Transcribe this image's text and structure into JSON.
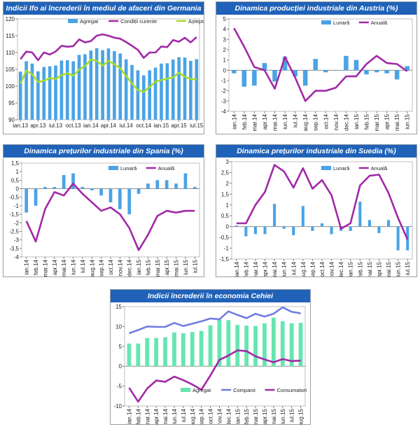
{
  "chart_data": [
    {
      "id": "germany",
      "type": "bar+line",
      "title": "Indicii Ifo ai încrederii în mediul de afaceri din Germania",
      "ylim": [
        90,
        120
      ],
      "yticks": [
        90,
        95,
        100,
        105,
        110,
        115,
        120
      ],
      "categories": [
        "ian.13",
        "feb.13",
        "mar.13",
        "apr.13",
        "mai.13",
        "iun.13",
        "iul.13",
        "aug.13",
        "sep.13",
        "oct.13",
        "nov.13",
        "dec.13",
        "ian.14",
        "feb.14",
        "mar.14",
        "apr.14",
        "mai.14",
        "iun.14",
        "iul.14",
        "aug.14",
        "sep.14",
        "oct.14",
        "nov.14",
        "dec.14",
        "ian.15",
        "feb.15",
        "mar.15",
        "apr.15",
        "mai.15",
        "iun.15",
        "iul.15"
      ],
      "tick_labels": [
        "ian.13",
        "apr.13",
        "iul.13",
        "oct.13",
        "ian.14",
        "apr.14",
        "iul.14",
        "oct.14",
        "ian.15",
        "apr.15",
        "iul.15"
      ],
      "legend": [
        "Agregat",
        "Condiții curente",
        "Așteptări"
      ],
      "series": [
        {
          "name": "Agregat",
          "type": "bar",
          "color": "#4aa3e6",
          "values": [
            104.3,
            107.4,
            106.7,
            104.4,
            105.7,
            105.9,
            106.1,
            107.6,
            107.7,
            107.4,
            109.3,
            109.5,
            110.6,
            111.3,
            110.7,
            111.2,
            110.4,
            109.7,
            108.0,
            106.3,
            104.7,
            103.2,
            104.7,
            105.5,
            106.7,
            106.8,
            107.9,
            108.6,
            108.5,
            107.5,
            108.0
          ]
        },
        {
          "name": "Condiții curente",
          "type": "line",
          "color": "#a12aa7",
          "values": [
            108.0,
            110.3,
            110.0,
            107.7,
            110.0,
            109.4,
            110.3,
            112.0,
            111.7,
            111.9,
            113.9,
            113.0,
            113.4,
            115.0,
            115.4,
            115.0,
            114.4,
            114.1,
            113.1,
            112.0,
            110.8,
            108.4,
            110.0,
            110.0,
            111.8,
            111.6,
            113.7,
            113.2,
            114.4,
            113.0,
            114.6
          ]
        },
        {
          "name": "Așteptări",
          "type": "line",
          "color": "#a8da2c",
          "values": [
            100.7,
            104.6,
            103.5,
            101.2,
            101.6,
            102.4,
            102.1,
            103.3,
            103.8,
            103.1,
            104.9,
            106.0,
            107.9,
            107.5,
            106.1,
            107.5,
            106.5,
            105.3,
            103.0,
            100.8,
            98.8,
            98.3,
            99.7,
            101.3,
            101.8,
            102.2,
            102.6,
            104.0,
            102.8,
            102.1,
            102.0
          ]
        }
      ]
    },
    {
      "id": "austria",
      "type": "bar+line",
      "title": "Dinamica producției industriale din Austria (%)",
      "ylim": [
        -4,
        5
      ],
      "yticks": [
        -4,
        -3,
        -2,
        -1,
        0,
        1,
        2,
        3,
        4,
        5
      ],
      "categories": [
        "ian.14",
        "feb.14",
        "mar.14",
        "apr.14",
        "mai.14",
        "iun.14",
        "iul.14",
        "aug.14",
        "sep.14",
        "oct.14",
        "nov.14",
        "dec.14",
        "ian.15",
        "feb.15",
        "mar.15",
        "apr.15",
        "mai.15",
        "iun.15"
      ],
      "tick_labels": [
        "ian.14",
        "feb.14",
        "mar.14",
        "apr.14",
        "mai.14",
        "iun.14",
        "iul.14",
        "aug.14",
        "sep.14",
        "oct.14",
        "nov.14",
        "dec.14",
        "ian.15",
        "feb.15",
        "mar.15",
        "apr.15",
        "mai.15",
        "iun.15"
      ],
      "legend": [
        "Lunară",
        "Anuală"
      ],
      "series": [
        {
          "name": "Lunară",
          "type": "bar",
          "color": "#4aa3e6",
          "values": [
            -0.3,
            -1.6,
            -1.5,
            0.7,
            -1.1,
            1.3,
            -0.6,
            -1.5,
            1.1,
            -0.2,
            0.0,
            1.4,
            1.0,
            -0.4,
            -0.2,
            -0.3,
            -0.9,
            0.4
          ]
        },
        {
          "name": "Anuală",
          "type": "line",
          "color": "#a12aa7",
          "values": [
            4.1,
            2.3,
            0.3,
            0.0,
            -1.8,
            1.3,
            -0.7,
            -3.0,
            -2.0,
            -2.0,
            -1.7,
            -0.6,
            -0.6,
            0.6,
            1.4,
            0.7,
            0.6,
            -0.1
          ]
        }
      ]
    },
    {
      "id": "spain",
      "type": "bar+line",
      "title": "Dinamica prețurilor industriale din Spania (%)",
      "ylim": [
        -4,
        1.5
      ],
      "yticks": [
        -4,
        -3.5,
        -3,
        -2.5,
        -2,
        -1.5,
        -1,
        -0.5,
        0,
        0.5,
        1,
        1.5
      ],
      "categories": [
        "ian.14",
        "feb.14",
        "mar.14",
        "apr.14",
        "mai.14",
        "iun.14",
        "iul.14",
        "aug.14",
        "sep.14",
        "oct.14",
        "nov.14",
        "dec.14",
        "ian.15",
        "feb.15",
        "mar.15",
        "apr.15",
        "mai.15",
        "iun.15",
        "iul.15"
      ],
      "tick_labels": [
        "ian.14",
        "feb.14",
        "mar.14",
        "apr.14",
        "mai.14",
        "iun.14",
        "iul.14",
        "aug.14",
        "sep.14",
        "oct.14",
        "nov.14",
        "dec.14",
        "ian.15",
        "feb.15",
        "mar.15",
        "apr.15",
        "mai.15",
        "iun.15",
        "iul.15"
      ],
      "legend": [
        "Lunară",
        "Anuală"
      ],
      "series": [
        {
          "name": "Lunară",
          "type": "bar",
          "color": "#4aa3e6",
          "values": [
            -1.4,
            -1.0,
            0.1,
            0.1,
            0.8,
            0.9,
            0.1,
            -0.1,
            -0.4,
            -0.8,
            -1.2,
            -1.5,
            -0.3,
            0.3,
            0.5,
            0.5,
            0.3,
            0.9,
            0.1
          ]
        },
        {
          "name": "Anuală",
          "type": "line",
          "color": "#a12aa7",
          "values": [
            -1.9,
            -3.1,
            -1.2,
            -0.2,
            -0.4,
            0.3,
            -0.3,
            -0.8,
            -1.3,
            -1.1,
            -1.5,
            -2.3,
            -3.6,
            -2.7,
            -1.6,
            -1.3,
            -1.4,
            -1.3,
            -1.3
          ]
        }
      ]
    },
    {
      "id": "sweden",
      "type": "bar+line",
      "title": "Dinamica prețurilor industriale din Suedia (%)",
      "ylim": [
        -1.5,
        3
      ],
      "yticks": [
        -1.5,
        -1,
        -0.5,
        0,
        0.5,
        1,
        1.5,
        2,
        2.5,
        3
      ],
      "categories": [
        "ian.14",
        "feb.14",
        "mar.14",
        "apr.14",
        "mai.14",
        "iun.14",
        "iul.14",
        "aug.14",
        "sep.14",
        "oct.14",
        "nov.14",
        "dec.14",
        "ian.15",
        "feb.15",
        "mar.15",
        "apr.15",
        "mai.15",
        "iun.15",
        "iul.15"
      ],
      "tick_labels": [
        "ian.14",
        "feb.14",
        "mar.14",
        "apr.14",
        "mai.14",
        "iun.14",
        "iul.14",
        "aug.14",
        "sep.14",
        "oct.14",
        "nov.14",
        "dec.14",
        "ian.15",
        "feb.15",
        "mar.15",
        "apr.15",
        "mai.15",
        "iun.15",
        "iul.15"
      ],
      "legend": [
        "Lunară",
        "Anuală"
      ],
      "series": [
        {
          "name": "Lunară",
          "type": "bar",
          "color": "#4aa3e6",
          "values": [
            0.05,
            -0.45,
            -0.35,
            -0.35,
            1.05,
            -0.1,
            -0.4,
            0.95,
            -0.2,
            0.15,
            -0.35,
            -0.2,
            -0.2,
            1.15,
            0.3,
            -0.3,
            0.3,
            -1.1,
            -1.1
          ]
        },
        {
          "name": "Anuală",
          "type": "line",
          "color": "#a12aa7",
          "values": [
            0.15,
            0.15,
            1.0,
            1.6,
            2.85,
            2.55,
            1.8,
            2.7,
            1.75,
            2.15,
            1.45,
            -0.1,
            0.15,
            1.9,
            2.35,
            2.4,
            1.55,
            0.4,
            -0.6
          ]
        }
      ]
    },
    {
      "id": "czech",
      "type": "bar+line",
      "title": "Indicii încrederii în economia Cehiei",
      "ylim": [
        -10,
        15
      ],
      "yticks": [
        -10,
        -5,
        0,
        5,
        10,
        15
      ],
      "categories": [
        "ian.14",
        "feb.14",
        "mar.14",
        "apr.14",
        "mai.14",
        "iun.14",
        "iul.14",
        "aug.14",
        "sep.14",
        "oct.14",
        "nov.14",
        "dec.14",
        "ian.15",
        "feb.15",
        "mar.15",
        "apr.15",
        "mai.15",
        "iun.15",
        "iul.15",
        "aug.15"
      ],
      "tick_labels": [
        "ian.14",
        "feb.14",
        "mar.14",
        "apr.14",
        "mai.14",
        "iun.14",
        "iul.14",
        "aug.14",
        "sep.14",
        "oct.14",
        "nov.14",
        "dec.14",
        "ian.15",
        "feb.15",
        "mar.15",
        "apr.15",
        "mai.15",
        "iun.15",
        "iul.15",
        "aug.15"
      ],
      "legend": [
        "Agregat",
        "Companii",
        "Consumatori"
      ],
      "series": [
        {
          "name": "Agregat",
          "type": "bar",
          "color": "#66e6b0",
          "values": [
            5.7,
            5.7,
            7.1,
            7.1,
            7.3,
            8.5,
            8.3,
            8.6,
            8.9,
            10.3,
            11.7,
            11.6,
            10.4,
            10.2,
            10.1,
            10.8,
            12.2,
            11.3,
            10.8,
            10.9
          ]
        },
        {
          "name": "Companii",
          "type": "line",
          "color": "#6f7ee0",
          "values": [
            8.3,
            9.1,
            10.0,
            9.9,
            9.9,
            10.9,
            10.1,
            10.7,
            11.3,
            12.0,
            11.8,
            13.8,
            12.9,
            12.1,
            13.2,
            12.5,
            13.2,
            14.8,
            13.7,
            13.3
          ]
        },
        {
          "name": "Consumatori",
          "type": "line",
          "color": "#a12aa7",
          "values": [
            -5.4,
            -8.9,
            -5.6,
            -3.6,
            -3.9,
            -2.6,
            -3.5,
            -4.6,
            -5.9,
            -2.3,
            1.6,
            2.7,
            4.0,
            3.8,
            2.5,
            1.7,
            1.0,
            1.8,
            1.3,
            1.4
          ]
        }
      ]
    }
  ]
}
